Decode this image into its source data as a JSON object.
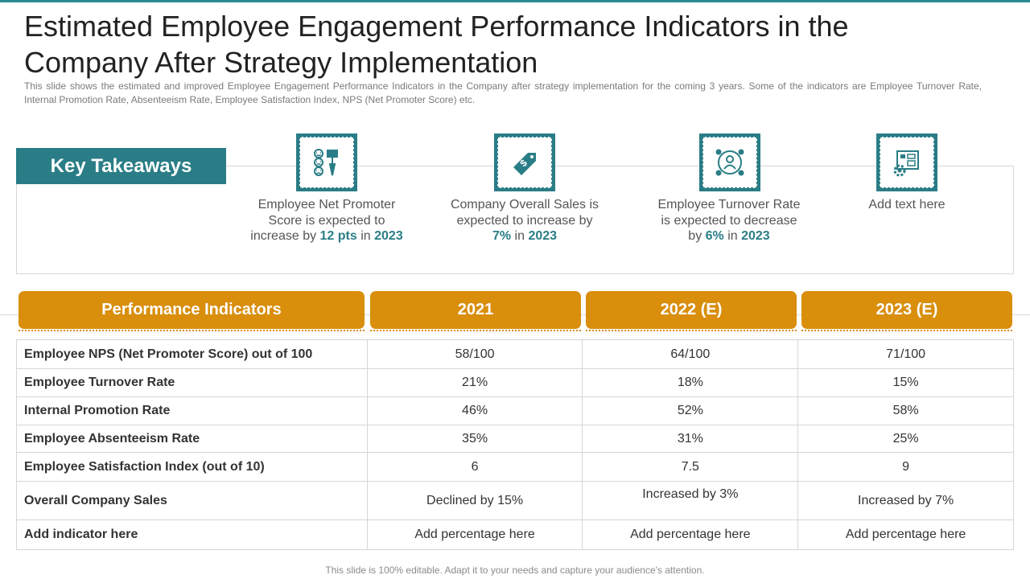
{
  "title": "Estimated Employee Engagement Performance Indicators in the Company After Strategy Implementation",
  "subtitle": "This slide shows the estimated and improved Employee Engagement Performance Indicators in the Company after strategy implementation for the coming 3 years. Some of the indicators are Employee Turnover  Rate, Internal Promotion Rate, Absenteeism Rate, Employee Satisfaction Index, NPS (Net Promoter Score) etc.",
  "key_takeaways": {
    "label": "Key Takeaways",
    "items": [
      {
        "icon": "survey-feedback-icon",
        "text_before": "Employee Net Promoter Score is expected to increase by ",
        "hl1": "12 pts",
        "text_mid": " in ",
        "hl2": "2023",
        "text_after": ""
      },
      {
        "icon": "price-tag-icon",
        "text_before": "Company Overall Sales is expected to increase by ",
        "hl1": "7%",
        "text_mid": " in ",
        "hl2": "2023",
        "text_after": ""
      },
      {
        "icon": "employee-network-icon",
        "text_before": "Employee Turnover  Rate is expected to decrease by ",
        "hl1": "6%",
        "text_mid": " in ",
        "hl2": "2023",
        "text_after": ""
      },
      {
        "icon": "blueprint-gear-icon",
        "text_before": "Add text here",
        "hl1": "",
        "text_mid": "",
        "hl2": "",
        "text_after": ""
      }
    ]
  },
  "table": {
    "headers": [
      "Performance Indicators",
      "2021",
      "2022 (E)",
      "2023 (E)"
    ],
    "rows": [
      [
        "Employee NPS (Net Promoter Score) out of 100",
        "58/100",
        "64/100",
        "71/100"
      ],
      [
        "Employee Turnover Rate",
        "21%",
        "18%",
        "15%"
      ],
      [
        "Internal Promotion Rate",
        "46%",
        "52%",
        "58%"
      ],
      [
        "Employee Absenteeism Rate",
        "35%",
        "31%",
        "25%"
      ],
      [
        "Employee Satisfaction Index (out of 10)",
        "6",
        "7.5",
        "9"
      ],
      [
        "Overall Company Sales",
        "Declined by 15%",
        "Increased by 3%",
        "Increased by 7%"
      ],
      [
        "Add indicator here",
        "Add percentage here",
        "Add percentage here",
        "Add percentage here"
      ]
    ]
  },
  "footer": "This slide is 100% editable. Adapt it to your needs and capture your audience's attention.",
  "colors": {
    "teal": "#2a7d86",
    "orange": "#d98e0c"
  }
}
